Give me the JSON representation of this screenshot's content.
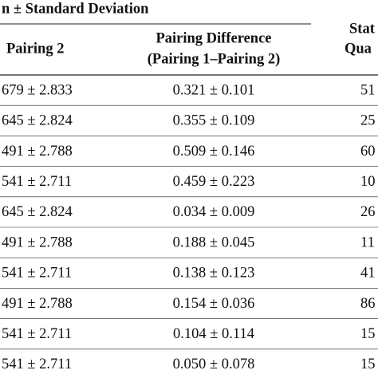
{
  "header": {
    "group_title": "n ± Standard Deviation",
    "columns": [
      "Pairing 2",
      [
        "Pairing Difference",
        "(Pairing 1–Pairing 2)"
      ],
      [
        "Stat",
        "Qua"
      ]
    ]
  },
  "table": {
    "rows": [
      [
        "679 ± 2.833",
        "0.321 ± 0.101",
        "51"
      ],
      [
        "645 ± 2.824",
        "0.355 ± 0.109",
        "25"
      ],
      [
        "491 ± 2.788",
        "0.509 ± 0.146",
        "60"
      ],
      [
        "541 ± 2.711",
        "0.459 ± 0.223",
        "10"
      ],
      [
        "645 ± 2.824",
        "0.034 ± 0.009",
        "26"
      ],
      [
        "491 ± 2.788",
        "0.188 ± 0.045",
        "11"
      ],
      [
        "541 ± 2.711",
        "0.138 ± 0.123",
        "41"
      ],
      [
        "491 ± 2.788",
        "0.154 ± 0.036",
        "86"
      ],
      [
        "541 ± 2.711",
        "0.104 ± 0.114",
        "15"
      ],
      [
        "541 ± 2.711",
        "0.050 ± 0.078",
        "15"
      ]
    ]
  }
}
